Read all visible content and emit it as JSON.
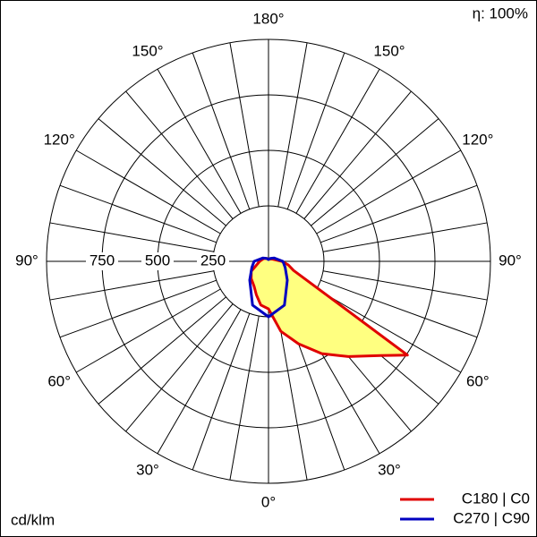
{
  "chart_data": {
    "type": "polar",
    "efficiency": "η: 100%",
    "unit": "cd/klm",
    "rlim": [
      0,
      1000
    ],
    "rticks": [
      250,
      500,
      750
    ],
    "angle_ticks": [
      {
        "value": 0,
        "label": "0°"
      },
      {
        "value": 30,
        "label": "30°"
      },
      {
        "value": 60,
        "label": "60°"
      },
      {
        "value": 90,
        "label": "90°"
      },
      {
        "value": 120,
        "label": "120°"
      },
      {
        "value": 150,
        "label": "150°"
      },
      {
        "value": 180,
        "label": "180°"
      }
    ],
    "series": [
      {
        "name": "C180 | C0",
        "color": "#e00000",
        "fill": "#ffff80",
        "angles": [
          -180,
          -150,
          -120,
          -90,
          -60,
          -45,
          -30,
          -20,
          -10,
          0,
          10,
          20,
          30,
          40,
          50,
          56,
          60,
          70,
          80,
          90,
          120,
          150,
          180
        ],
        "values": [
          8,
          15,
          25,
          40,
          90,
          110,
          130,
          160,
          200,
          214,
          320,
          395,
          480,
          560,
          660,
          755,
          300,
          120,
          90,
          60,
          20,
          12,
          8
        ]
      },
      {
        "name": "C270 | C90",
        "color": "#0000c0",
        "angles": [
          -180,
          -150,
          -120,
          -90,
          -70,
          -45,
          -20,
          0,
          20,
          45,
          70,
          90,
          120,
          150,
          180
        ],
        "values": [
          8,
          15,
          30,
          65,
          80,
          120,
          210,
          250,
          210,
          120,
          80,
          65,
          30,
          15,
          8
        ]
      }
    ]
  }
}
